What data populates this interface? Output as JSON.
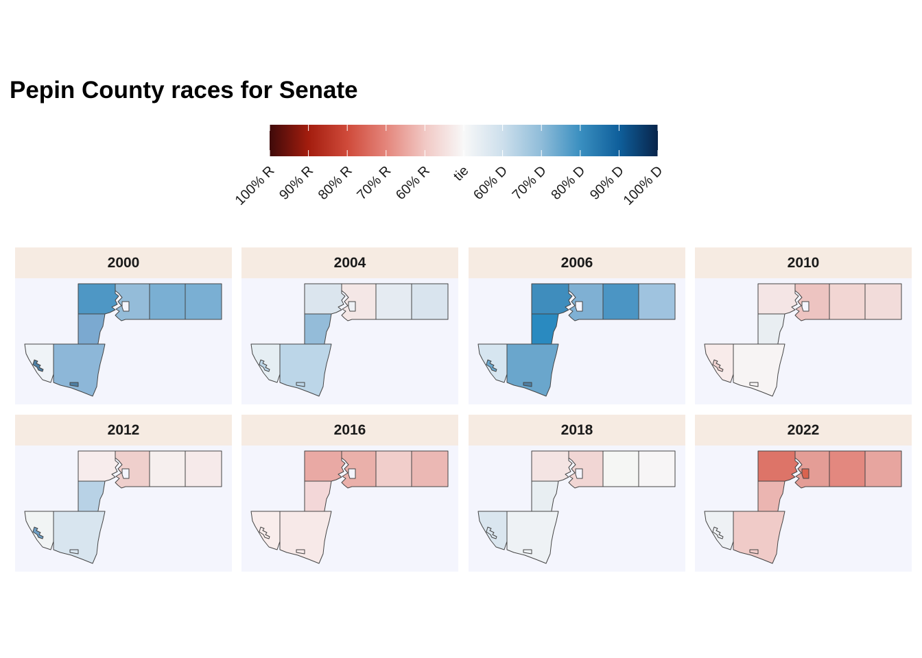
{
  "title": "Pepin County races for Senate",
  "legend": {
    "labels": [
      "100% R",
      "90% R",
      "80% R",
      "70% R",
      "60% R",
      "tie",
      "60% D",
      "70% D",
      "80% D",
      "90% D",
      "100% D"
    ],
    "colors": [
      "#3f0a0a",
      "#a31d0e",
      "#cf4a3a",
      "#e4857b",
      "#f1c8c4",
      "#f8f8f8",
      "#cddfec",
      "#8fbcd9",
      "#3a8fc0",
      "#0f5f9b",
      "#08244a"
    ]
  },
  "panels": [
    {
      "year": "2000",
      "fills": {
        "nw": "#4e97c5",
        "ne1": "#94bcd9",
        "ne2": "#7aafd3",
        "ne3": "#7aafd3",
        "mid": "#7ba9d0",
        "sw": "#eff3f7",
        "se": "#8db7d8",
        "enclave1": "#4e7fa3",
        "enclave2": "#4e7fa3",
        "city": "#f4f5fd"
      }
    },
    {
      "year": "2004",
      "fills": {
        "nw": "#dbe5ee",
        "ne1": "#f4e7e6",
        "ne2": "#e5ebf2",
        "ne3": "#d9e4ee",
        "mid": "#94bcd9",
        "sw": "#e5eef3",
        "se": "#bcd6e8",
        "enclave1": "#bcd6e8",
        "enclave2": "#bcd6e8",
        "city": "#eef1f5"
      }
    },
    {
      "year": "2006",
      "fills": {
        "nw": "#3f8dbd",
        "ne1": "#7fb0d3",
        "ne2": "#4b95c4",
        "ne3": "#9fc3df",
        "mid": "#2a8ac0",
        "sw": "#d6e5f0",
        "se": "#6aa6cc",
        "enclave1": "#6aa6cc",
        "enclave2": "#4e7fa3",
        "city": "#f4f5fd"
      }
    },
    {
      "year": "2010",
      "fills": {
        "nw": "#f4e5e5",
        "ne1": "#edc4c1",
        "ne2": "#f2d6d3",
        "ne3": "#f2dcda",
        "mid": "#e9eef2",
        "sw": "#f8ebea",
        "se": "#f7f4f4",
        "enclave1": "#efd2d0",
        "enclave2": "#f7f4f4",
        "city": "#f4f5fd"
      }
    },
    {
      "year": "2012",
      "fills": {
        "nw": "#f7ecec",
        "ne1": "#efcfcc",
        "ne2": "#f6efee",
        "ne3": "#f6eaea",
        "mid": "#b8d2e6",
        "sw": "#f1f4f4",
        "se": "#d8e5ef",
        "enclave1": "#6e9ec4",
        "enclave2": "#d8e5ef",
        "city": "#f4f5fd"
      }
    },
    {
      "year": "2016",
      "fills": {
        "nw": "#e9a9a4",
        "ne1": "#eab0aa",
        "ne2": "#f1cecb",
        "ne3": "#ebb8b4",
        "mid": "#f3d7d8",
        "sw": "#f9edec",
        "se": "#f7e9e8",
        "enclave1": "#f9edec",
        "enclave2": "#f7e9e8",
        "city": "#f4f5fd"
      }
    },
    {
      "year": "2018",
      "fills": {
        "nw": "#f4e4e3",
        "ne1": "#f1d6d4",
        "ne2": "#f5f6f4",
        "ne3": "#f7f5f6",
        "mid": "#e8eef2",
        "sw": "#dae6ef",
        "se": "#eef2f5",
        "enclave1": "#dae6ef",
        "enclave2": "#eef2f5",
        "city": "#f4f5fd"
      }
    },
    {
      "year": "2022",
      "fills": {
        "nw": "#dd7468",
        "ne1": "#e49d96",
        "ne2": "#e3887f",
        "ne3": "#e7a59f",
        "mid": "#ebb5b1",
        "sw": "#eef1f4",
        "se": "#f0cbc8",
        "enclave1": "#eef1f4",
        "enclave2": "#f0cbc8",
        "city": "#d9634f"
      }
    }
  ]
}
